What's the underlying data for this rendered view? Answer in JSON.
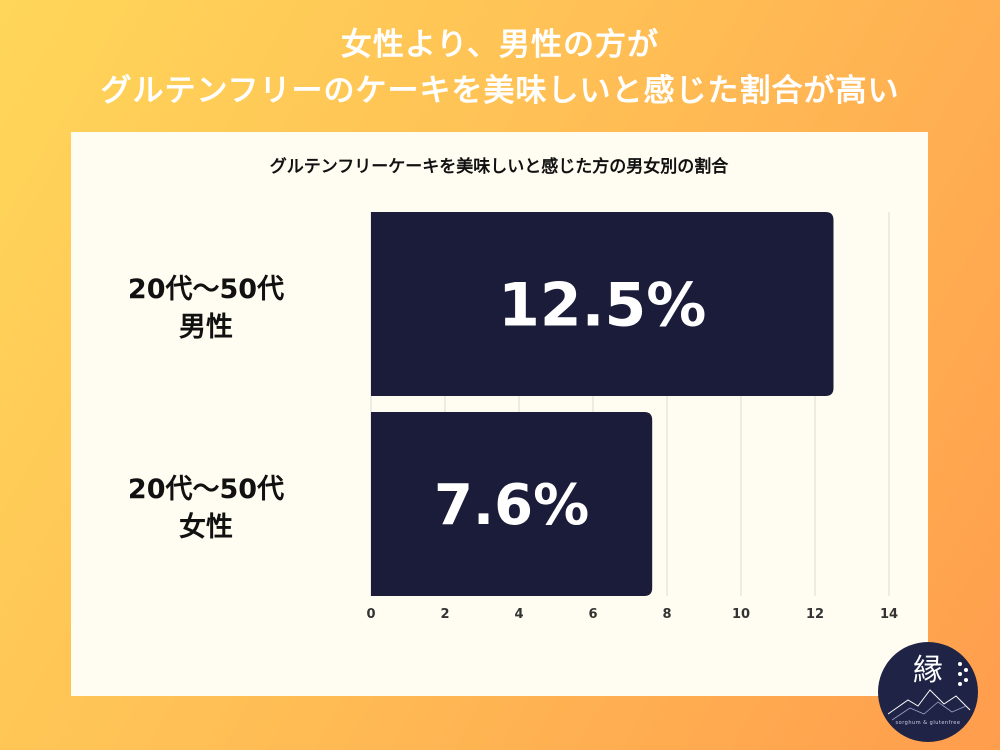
{
  "headline": {
    "line1": "女性より、男性の方が",
    "line2": "グルテンフリーのケーキを美味しいと感じた割合が高い"
  },
  "chart_data": {
    "type": "bar",
    "orientation": "horizontal",
    "title": "グルテンフリーケーキを美味しいと感じた方の男女別の割合",
    "categories": [
      {
        "line1": "20代〜50代",
        "line2": "男性"
      },
      {
        "line1": "20代〜50代",
        "line2": "女性"
      }
    ],
    "values": [
      12.5,
      7.6
    ],
    "data_labels": [
      "12.5%",
      "7.6%"
    ],
    "xlim": [
      0,
      14
    ],
    "xticks": [
      "0",
      "2",
      "4",
      "6",
      "8",
      "10",
      "12",
      "14"
    ],
    "grid": true,
    "bar_color": "#1a1c3a"
  },
  "logo": {
    "char": "縁",
    "subtitle": "sorghum & glutenfree"
  }
}
